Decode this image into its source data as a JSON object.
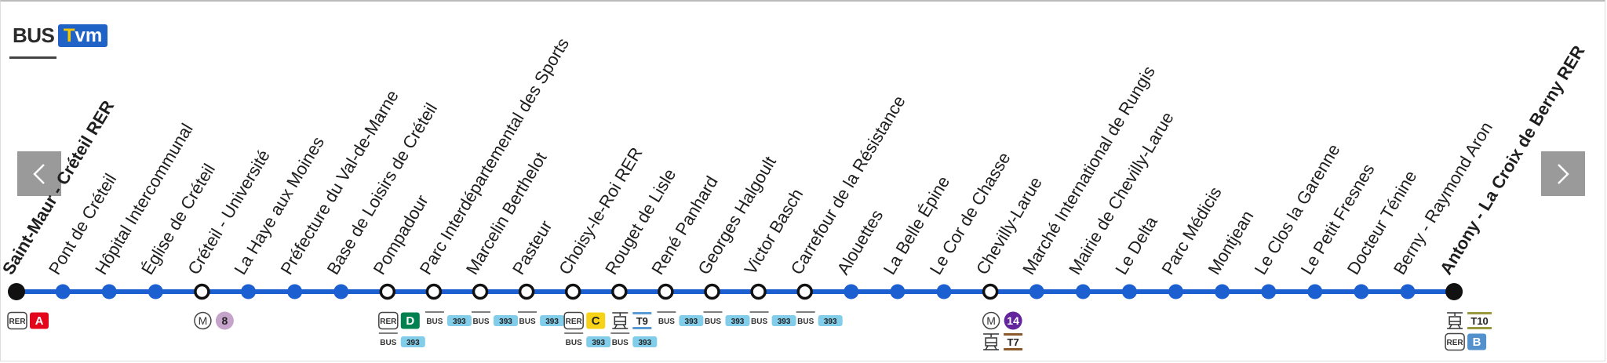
{
  "header": {
    "mode": "BUS",
    "line": "Tvm"
  },
  "stops": [
    {
      "name": "Saint-Maur - Créteil RER",
      "marker": "terminus",
      "connections": [
        {
          "mode": "RER",
          "line": "A",
          "color": "#e3051c"
        }
      ]
    },
    {
      "name": "Pont de Créteil",
      "marker": "stop"
    },
    {
      "name": "Hôpital Intercommunal",
      "marker": "stop"
    },
    {
      "name": "Église de Créteil",
      "marker": "stop"
    },
    {
      "name": "Créteil - Université",
      "marker": "connection",
      "connections": [
        {
          "mode": "M",
          "line": "8",
          "color": "#c5a3ca"
        }
      ]
    },
    {
      "name": "La Haye aux Moines",
      "marker": "stop"
    },
    {
      "name": "Préfecture du Val-de-Marne",
      "marker": "stop"
    },
    {
      "name": "Base de Loisirs de Créteil",
      "marker": "stop"
    },
    {
      "name": "Pompadour",
      "marker": "connection",
      "connections": [
        {
          "mode": "RER",
          "line": "D",
          "color": "#00814f"
        },
        {
          "mode": "BUS",
          "line": "393",
          "color": "#82cdea"
        }
      ]
    },
    {
      "name": "Parc Interdépartemental des Sports",
      "marker": "connection",
      "connections": [
        {
          "mode": "BUS",
          "line": "393",
          "color": "#82cdea"
        }
      ]
    },
    {
      "name": "Marcelin Berthelot",
      "marker": "connection",
      "connections": [
        {
          "mode": "BUS",
          "line": "393",
          "color": "#82cdea"
        }
      ]
    },
    {
      "name": "Pasteur",
      "marker": "connection",
      "connections": [
        {
          "mode": "BUS",
          "line": "393",
          "color": "#82cdea"
        }
      ]
    },
    {
      "name": "Choisy-le-Roi RER",
      "marker": "connection",
      "connections": [
        {
          "mode": "RER",
          "line": "C",
          "color": "#f6d219"
        },
        {
          "mode": "BUS",
          "line": "393",
          "color": "#82cdea"
        }
      ]
    },
    {
      "name": "Rouget de Lisle",
      "marker": "connection",
      "connections": [
        {
          "icon": "tram",
          "line": "T9",
          "color": "#5b9bd5"
        },
        {
          "mode": "BUS",
          "line": "393",
          "color": "#82cdea"
        }
      ]
    },
    {
      "name": "René Panhard",
      "marker": "connection",
      "connections": [
        {
          "mode": "BUS",
          "line": "393",
          "color": "#82cdea"
        }
      ]
    },
    {
      "name": "Georges Halgoult",
      "marker": "connection",
      "connections": [
        {
          "mode": "BUS",
          "line": "393",
          "color": "#82cdea"
        }
      ]
    },
    {
      "name": "Victor Basch",
      "marker": "connection",
      "connections": [
        {
          "mode": "BUS",
          "line": "393",
          "color": "#82cdea"
        }
      ]
    },
    {
      "name": "Carrefour de la Résistance",
      "marker": "connection",
      "connections": [
        {
          "mode": "BUS",
          "line": "393",
          "color": "#82cdea"
        }
      ]
    },
    {
      "name": "Alouettes",
      "marker": "stop"
    },
    {
      "name": "La Belle Épine",
      "marker": "stop"
    },
    {
      "name": "Le Cor de Chasse",
      "marker": "stop"
    },
    {
      "name": "Chevilly-Larue",
      "marker": "connection",
      "connections": [
        {
          "mode": "M",
          "line": "14",
          "color": "#62259d"
        },
        {
          "icon": "tram",
          "line": "T7",
          "color": "#8a5a2b"
        }
      ]
    },
    {
      "name": "Marché International de Rungis",
      "marker": "stop"
    },
    {
      "name": "Mairie de Chevilly-Larue",
      "marker": "stop"
    },
    {
      "name": "Le Delta",
      "marker": "stop"
    },
    {
      "name": "Parc Médicis",
      "marker": "stop"
    },
    {
      "name": "Montjean",
      "marker": "stop"
    },
    {
      "name": "Le Clos la Garenne",
      "marker": "stop"
    },
    {
      "name": "Le Petit Fresnes",
      "marker": "stop"
    },
    {
      "name": "Docteur Ténine",
      "marker": "stop"
    },
    {
      "name": "Berny - Raymond Aron",
      "marker": "stop"
    },
    {
      "name": "Antony - La Croix de Berny RER",
      "marker": "terminus",
      "connections": [
        {
          "icon": "tram",
          "line": "T10",
          "color": "#9a9940"
        },
        {
          "mode": "RER",
          "line": "B",
          "color": "#5291ce"
        }
      ]
    }
  ]
}
